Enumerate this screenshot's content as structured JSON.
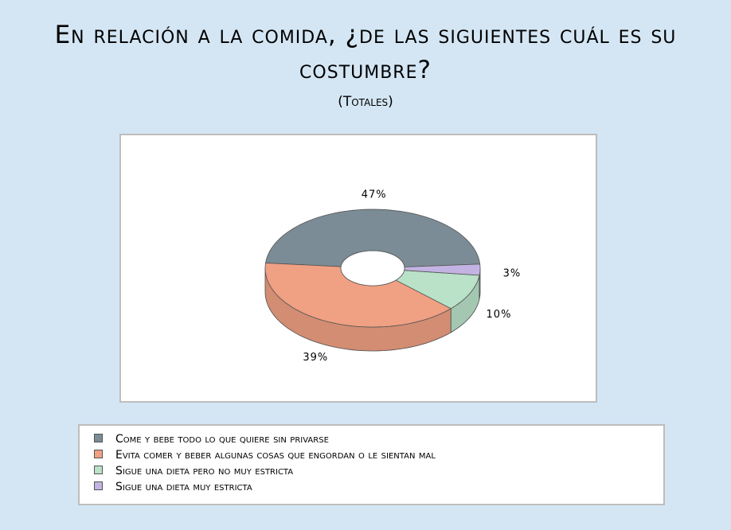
{
  "chart_data": {
    "type": "pie",
    "title": "En relación a la comida, ¿de las siguientes cuál es su costumbre?",
    "subtitle": "(Totales)",
    "categories": [
      "Come y bebe todo lo que quiere sin privarse",
      "Evita comer y beber algunas cosas que engordan o le sientan mal",
      "Sigue una dieta pero no muy estricta",
      "Sigue una dieta muy estricta"
    ],
    "values": [
      47,
      39,
      10,
      3
    ],
    "value_labels": [
      "47%",
      "39%",
      "10%",
      "3%"
    ],
    "colors": [
      "#7b8c96",
      "#f0a083",
      "#b9e2c9",
      "#c3b3e2"
    ],
    "donut": true,
    "legend": "bottom"
  }
}
